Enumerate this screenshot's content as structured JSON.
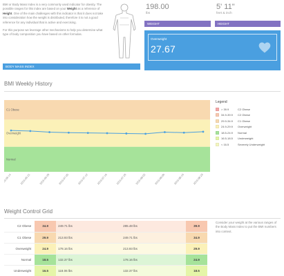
{
  "intro": {
    "p1_a": "BMI or Body Mass Index is a very commonly used indicator for obesity. The possible ranges for this index are based on your ",
    "p1_weight": "Weight",
    "p1_b": " as a reference of ",
    "p1_height": "Height",
    "p1_c": ". One of the main challenges with this indicator is that it does not take into consideration how the weight is distributed, therefore it is not a good reference for any individual that is active and exercising.",
    "p2": "For this purpose we leverage other mechanisms to help you determine what type of body composition you have based on other formulas.",
    "tag": "BODY MASS INDEX"
  },
  "weight": {
    "value": "198.00",
    "unit": "lbs",
    "tag": "WEIGHT"
  },
  "height": {
    "value": "5' 11\"",
    "unit": "feet & inch",
    "tag": "HEIGHT"
  },
  "bmi_status": {
    "label": "Overweight",
    "value": "27.67",
    "icon": "heart-icon"
  },
  "history": {
    "title": "BMI Weekly History",
    "legend_title": "Legend",
    "legend": [
      {
        "range": "> 39.9",
        "name": "C2 Obese",
        "color": "#f4a6a6"
      },
      {
        "range": "34.9-39.9",
        "name": "C2 Obese",
        "color": "#f8c8b0"
      },
      {
        "range": "29.9-34.9",
        "name": "C1 Obese",
        "color": "#f8d9b0"
      },
      {
        "range": "24.9-29.9",
        "name": "Overweight",
        "color": "#fbf1b8"
      },
      {
        "range": "18.5-24.9",
        "name": "Normal",
        "color": "#a6e39a"
      },
      {
        "range": "16.5-18.5",
        "name": "Underweight",
        "color": "#e5f5a8"
      },
      {
        "range": "< 16.5",
        "name": "Severely Underweight",
        "color": "#f4f6c0"
      }
    ]
  },
  "chart_data": {
    "type": "line",
    "x": [
      "2015-06-14",
      "2015-06-21",
      "2015-06-28",
      "2015-07-05",
      "2015-07-12",
      "2015-07-19",
      "2015-07-26",
      "2015-08-02",
      "2015-08-09",
      "2015-08-16",
      "2015-08-23"
    ],
    "y": [
      27.9,
      27.8,
      27.6,
      27.5,
      27.45,
      27.4,
      27.35,
      27.3,
      27.6,
      27.5,
      27.67
    ],
    "ylim": [
      20.3,
      33.5
    ],
    "bands": [
      {
        "name": "C1 Obese",
        "from": 29.9,
        "to": 33.5,
        "color": "#f8d9b0"
      },
      {
        "name": "Overweight",
        "from": 24.9,
        "to": 29.9,
        "color": "#fbf1b8"
      },
      {
        "name": "Normal",
        "from": 20.3,
        "to": 24.9,
        "color": "#a6e39a"
      }
    ],
    "line_color": "#4a9fe0"
  },
  "grid": {
    "title": "Weight Control Grid",
    "note": "Consider your weight at the various ranges of the Body Mass Index to put the BMI numbers into context.",
    "rows": [
      {
        "category": "C2 Obese",
        "bmi_low": "34.9",
        "weight_low": "249.71 lbs",
        "weight_high": "285.48 lbs",
        "bmi_high": "39.9",
        "color": "#f8c8b0",
        "light": "#fde9df"
      },
      {
        "category": "C1 Obese",
        "bmi_low": "29.9",
        "weight_low": "213.93 lbs",
        "weight_high": "249.71 lbs",
        "bmi_high": "34.9",
        "color": "#f8d9b0",
        "light": "#fdf0df"
      },
      {
        "category": "Overweight",
        "bmi_low": "24.9",
        "weight_low": "178.16 lbs",
        "weight_high": "213.93 lbs",
        "bmi_high": "29.9",
        "color": "#fbf1b8",
        "light": "#fdf9e2"
      },
      {
        "category": "Normal",
        "bmi_low": "18.5",
        "weight_low": "132.37 lbs",
        "weight_high": "178.16 lbs",
        "bmi_high": "24.9",
        "color": "#a6e39a",
        "light": "#dcf5d6"
      },
      {
        "category": "Underweight",
        "bmi_low": "16.5",
        "weight_low": "118.06 lbs",
        "weight_high": "132.37 lbs",
        "bmi_high": "18.5",
        "color": "#e5f5a8",
        "light": "#f4fbdc"
      }
    ]
  }
}
